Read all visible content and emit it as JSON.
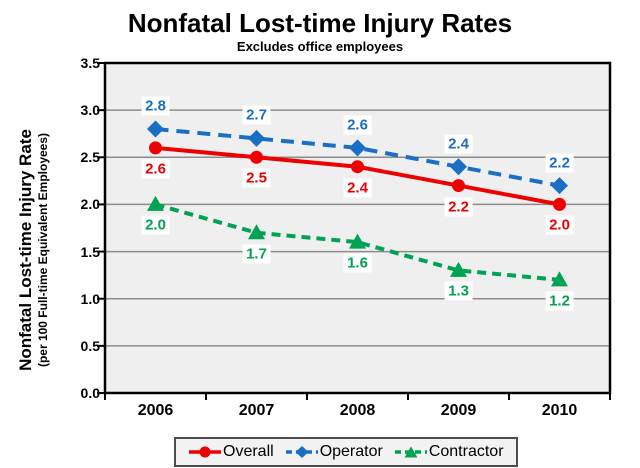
{
  "page": {
    "background": "#FFFFFF"
  },
  "chart_data": {
    "type": "line",
    "title": "Nonfatal Lost-time Injury Rates",
    "subtitle": "Excludes office employees",
    "ylabel": "Nonfatal Lost-time Injury Rate",
    "ylabel_sub": "(per 100 Full-time Equivalent Employees)",
    "xlabel": "",
    "categories": [
      "2006",
      "2007",
      "2008",
      "2009",
      "2010"
    ],
    "ylim": [
      0,
      3.5
    ],
    "y_ticks": [
      0,
      0.5,
      1,
      1.5,
      2,
      2.5,
      3,
      3.5
    ],
    "y_tick_labels": [
      "0.0",
      "0.5",
      "1.0",
      "1.5",
      "2.0",
      "2.5",
      "3.0",
      "3.5"
    ],
    "grid": "horizontal-only",
    "legend_position": "bottom-center",
    "series": [
      {
        "name": "Overall",
        "marker": "circle",
        "line_style": "solid",
        "dash": "",
        "color": "#EE0000",
        "values": [
          2.6,
          2.5,
          2.4,
          2.2,
          2.0
        ],
        "point_labels": [
          "2.6",
          "2.5",
          "2.4",
          "2.2",
          "2.0"
        ],
        "label_position": "below"
      },
      {
        "name": "Operator",
        "marker": "diamond",
        "line_style": "dashed",
        "dash": "13 8",
        "color": "#1A6FC4",
        "values": [
          2.8,
          2.7,
          2.6,
          2.4,
          2.2
        ],
        "point_labels": [
          "2.8",
          "2.7",
          "2.6",
          "2.4",
          "2.2"
        ],
        "label_position": "above"
      },
      {
        "name": "Contractor",
        "marker": "triangle",
        "line_style": "dashed",
        "dash": "9 6",
        "color": "#00A351",
        "values": [
          2.0,
          1.7,
          1.6,
          1.3,
          1.2
        ],
        "point_labels": [
          "2.0",
          "1.7",
          "1.6",
          "1.3",
          "1.2"
        ],
        "label_position": "below"
      }
    ],
    "colors": {
      "plot_bg": "#EFEFEF",
      "grid": "#8C8C8C",
      "axis": "#000000",
      "label_chip_bg": "#FFFFFF",
      "legend_bg": "#F2F2F2",
      "legend_border": "#4D4D4D"
    }
  }
}
